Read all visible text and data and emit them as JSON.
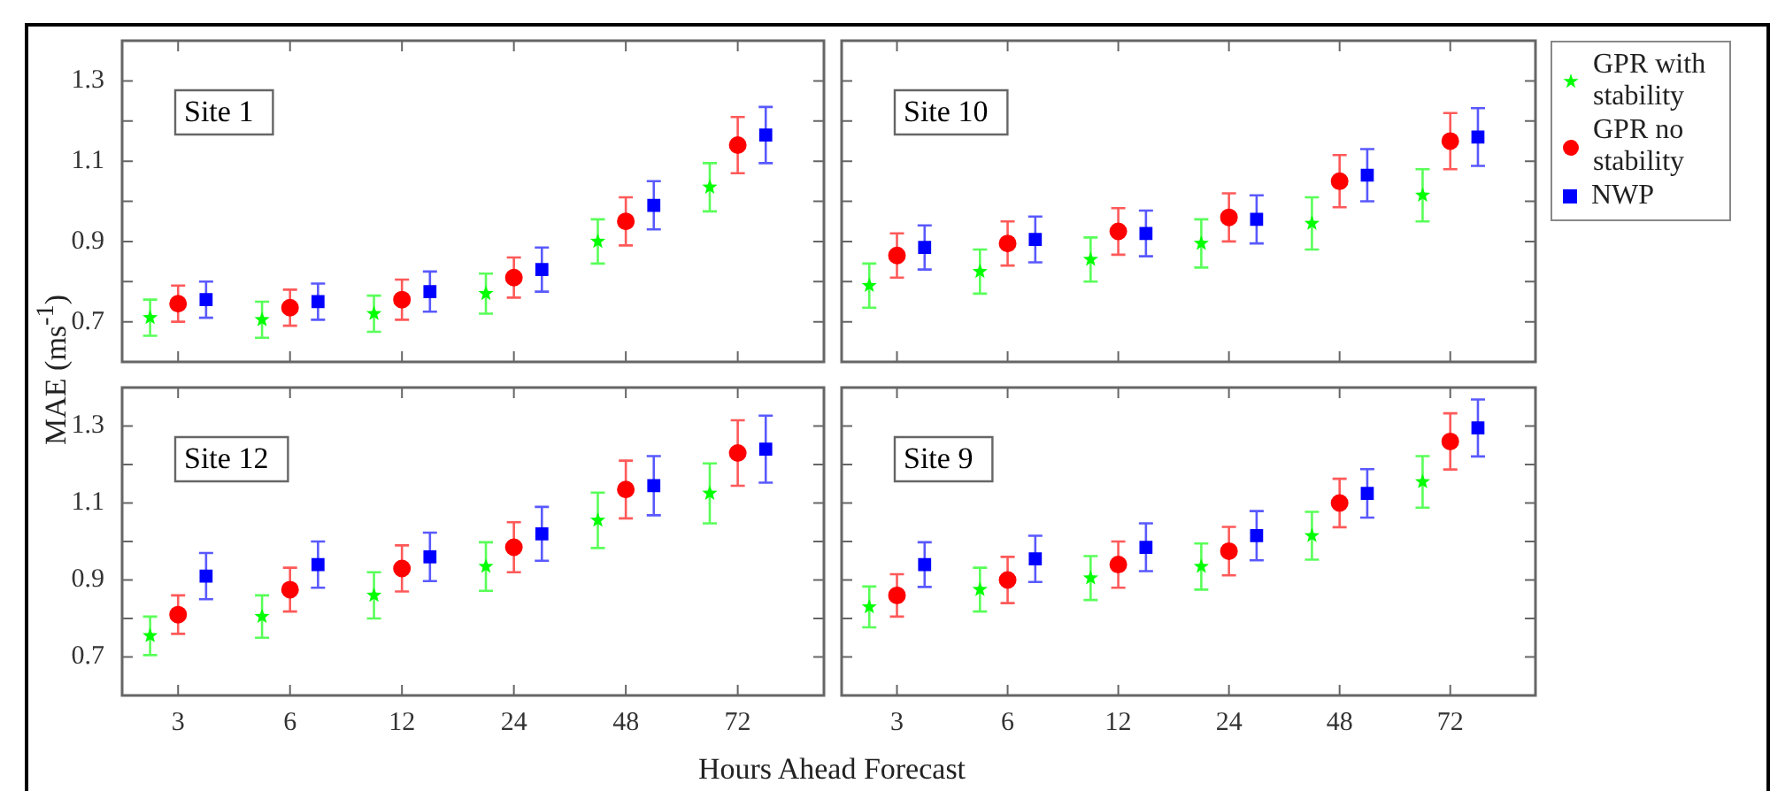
{
  "chart_data": [
    {
      "type": "scatter",
      "annotations": [
        "Site 1"
      ],
      "ylabel": "MAE (ms$^{-1}$)",
      "categories": [
        "3",
        "6",
        "12",
        "24",
        "48",
        "72"
      ],
      "ylim": [
        0.6,
        1.4
      ],
      "yticks": [
        0.7,
        {
          "value": 0.8,
          "label": null
        },
        0.9,
        {
          "value": 1.0,
          "label": null
        },
        1.1,
        {
          "value": 1.2,
          "label": null
        },
        1.3
      ],
      "tick_labels": "y",
      "legend": "right",
      "series": [
        {
          "name": "GPR with stability",
          "color": "#00ff00",
          "marker": "star",
          "values": [
            0.71,
            0.705,
            0.72,
            0.77,
            0.9,
            1.035
          ],
          "errors": [
            0.045,
            0.045,
            0.045,
            0.05,
            0.055,
            0.06
          ]
        },
        {
          "name": "GPR no stability",
          "color": "#ff0000",
          "marker": "circle",
          "values": [
            0.745,
            0.735,
            0.755,
            0.81,
            0.95,
            1.14
          ],
          "errors": [
            0.045,
            0.045,
            0.05,
            0.05,
            0.06,
            0.07
          ]
        },
        {
          "name": "NWP",
          "color": "#0000ff",
          "marker": "square",
          "values": [
            0.755,
            0.75,
            0.775,
            0.83,
            0.99,
            1.165
          ],
          "errors": [
            0.045,
            0.045,
            0.05,
            0.055,
            0.06,
            0.07
          ]
        }
      ]
    },
    {
      "type": "scatter",
      "annotations": [
        "Site 10"
      ],
      "categories": [
        "3",
        "6",
        "12",
        "24",
        "48",
        "72"
      ],
      "ylim": [
        0.6,
        1.4
      ],
      "yticks": [
        0.7,
        {
          "value": 0.8,
          "label": null
        },
        0.9,
        {
          "value": 1.0,
          "label": null
        },
        1.1,
        {
          "value": 1.2,
          "label": null
        },
        1.3
      ],
      "tick_labels": false,
      "series": [
        {
          "color": "#00ff00",
          "marker": "star",
          "values": [
            0.79,
            0.825,
            0.855,
            0.895,
            0.945,
            1.015
          ],
          "errors": [
            0.055,
            0.055,
            0.055,
            0.06,
            0.065,
            0.065
          ]
        },
        {
          "color": "#ff0000",
          "marker": "circle",
          "values": [
            0.865,
            0.895,
            0.925,
            0.96,
            1.05,
            1.15
          ],
          "errors": [
            0.055,
            0.055,
            0.058,
            0.06,
            0.065,
            0.07
          ]
        },
        {
          "color": "#0000ff",
          "marker": "square",
          "values": [
            0.885,
            0.905,
            0.92,
            0.955,
            1.065,
            1.16
          ],
          "errors": [
            0.055,
            0.057,
            0.057,
            0.06,
            0.065,
            0.072
          ]
        }
      ]
    },
    {
      "type": "scatter",
      "annotations": [
        "Site 12"
      ],
      "xlabel": "Hours Ahead Forecast",
      "categories": [
        "3",
        "6",
        "12",
        "24",
        "48",
        "72"
      ],
      "ylim": [
        0.6,
        1.4
      ],
      "yticks": [
        0.7,
        {
          "value": 0.8,
          "label": null
        },
        0.9,
        {
          "value": 1.0,
          "label": null
        },
        1.1,
        {
          "value": 1.2,
          "label": null
        },
        1.3
      ],
      "series": [
        {
          "color": "#00ff00",
          "marker": "star",
          "values": [
            0.755,
            0.805,
            0.86,
            0.935,
            1.055,
            1.125
          ],
          "errors": [
            0.05,
            0.055,
            0.06,
            0.063,
            0.072,
            0.078
          ]
        },
        {
          "color": "#ff0000",
          "marker": "circle",
          "values": [
            0.81,
            0.875,
            0.93,
            0.985,
            1.135,
            1.23
          ],
          "errors": [
            0.05,
            0.057,
            0.06,
            0.065,
            0.075,
            0.085
          ]
        },
        {
          "color": "#0000ff",
          "marker": "square",
          "values": [
            0.91,
            0.94,
            0.96,
            1.02,
            1.145,
            1.24
          ],
          "errors": [
            0.06,
            0.06,
            0.063,
            0.07,
            0.077,
            0.087
          ]
        }
      ]
    },
    {
      "type": "scatter",
      "annotations": [
        "Site 9"
      ],
      "categories": [
        "3",
        "6",
        "12",
        "24",
        "48",
        "72"
      ],
      "ylim": [
        0.6,
        1.4
      ],
      "yticks": [
        0.7,
        {
          "value": 0.8,
          "label": null
        },
        0.9,
        {
          "value": 1.0,
          "label": null
        },
        1.1,
        {
          "value": 1.2,
          "label": null
        },
        1.3
      ],
      "tick_labels": "x",
      "series": [
        {
          "color": "#00ff00",
          "marker": "star",
          "values": [
            0.83,
            0.875,
            0.905,
            0.935,
            1.015,
            1.155
          ],
          "errors": [
            0.053,
            0.057,
            0.057,
            0.06,
            0.062,
            0.067
          ]
        },
        {
          "color": "#ff0000",
          "marker": "circle",
          "values": [
            0.86,
            0.9,
            0.94,
            0.975,
            1.1,
            1.26
          ],
          "errors": [
            0.055,
            0.06,
            0.06,
            0.063,
            0.063,
            0.073
          ]
        },
        {
          "color": "#0000ff",
          "marker": "square",
          "values": [
            0.94,
            0.955,
            0.985,
            1.015,
            1.125,
            1.295
          ],
          "errors": [
            0.058,
            0.06,
            0.062,
            0.064,
            0.063,
            0.074
          ]
        }
      ]
    }
  ]
}
